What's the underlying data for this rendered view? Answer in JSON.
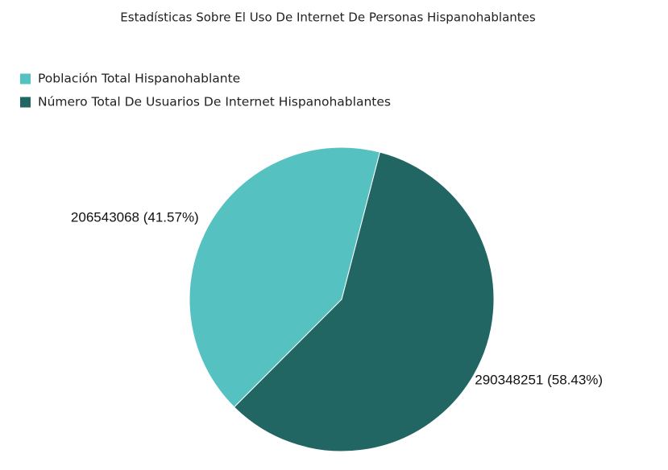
{
  "chart_data": {
    "type": "pie",
    "title": "Estadísticas Sobre El Uso De Internet De Personas Hispanohablantes",
    "categories": [
      "Población Total Hispanohablante",
      "Número Total De Usuarios De Internet Hispanohablantes"
    ],
    "values": [
      206543068,
      290348251
    ],
    "value_labels": [
      "206543068 (41.57%)",
      "290348251 (58.43%)"
    ],
    "colors": [
      "#56c1c1",
      "#226663"
    ],
    "legend": "top-left"
  }
}
